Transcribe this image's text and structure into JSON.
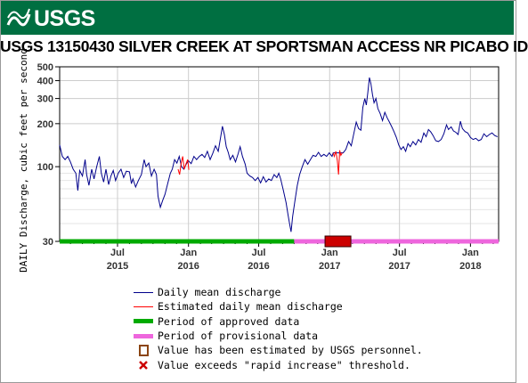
{
  "header": {
    "logo_text": "USGS"
  },
  "chart_data": {
    "type": "line",
    "title": "USGS 13150430 SILVER CREEK AT SPORTSMAN ACCESS NR PICABO ID",
    "ylabel": "DAILY Discharge, cubic feet per second",
    "xlabel": "",
    "y_scale": "log",
    "ylim": [
      30,
      500
    ],
    "y_ticks": [
      {
        "value": 30,
        "label": "30"
      },
      {
        "value": 100,
        "label": "100"
      },
      {
        "value": 200,
        "label": "200"
      },
      {
        "value": 300,
        "label": "300"
      },
      {
        "value": 400,
        "label": "400"
      },
      {
        "value": 500,
        "label": "500"
      }
    ],
    "xlim": [
      "2015-02-01",
      "2018-03-15"
    ],
    "x_ticks": [
      {
        "date": "2015-07-01",
        "line1": "Jul",
        "line2": "2015"
      },
      {
        "date": "2016-01-01",
        "line1": "Jan",
        "line2": "2016"
      },
      {
        "date": "2016-07-01",
        "line1": "Jul",
        "line2": "2016"
      },
      {
        "date": "2017-01-01",
        "line1": "Jan",
        "line2": "2017"
      },
      {
        "date": "2017-07-01",
        "line1": "Jul",
        "line2": "2017"
      },
      {
        "date": "2018-01-01",
        "line1": "Jan",
        "line2": "2018"
      }
    ],
    "grid": true,
    "legend_position": "bottom",
    "series": [
      {
        "name": "Daily mean discharge",
        "color": "#00008b",
        "points": [
          [
            "2015-02-01",
            142
          ],
          [
            "2015-02-08",
            118
          ],
          [
            "2015-02-15",
            112
          ],
          [
            "2015-02-22",
            118
          ],
          [
            "2015-03-01",
            108
          ],
          [
            "2015-03-08",
            96
          ],
          [
            "2015-03-15",
            90
          ],
          [
            "2015-03-20",
            68
          ],
          [
            "2015-03-25",
            94
          ],
          [
            "2015-04-01",
            86
          ],
          [
            "2015-04-08",
            112
          ],
          [
            "2015-04-12",
            88
          ],
          [
            "2015-04-18",
            74
          ],
          [
            "2015-04-25",
            96
          ],
          [
            "2015-05-01",
            82
          ],
          [
            "2015-05-08",
            100
          ],
          [
            "2015-05-15",
            118
          ],
          [
            "2015-05-20",
            90
          ],
          [
            "2015-05-26",
            78
          ],
          [
            "2015-06-01",
            96
          ],
          [
            "2015-06-08",
            75
          ],
          [
            "2015-06-14",
            86
          ],
          [
            "2015-06-20",
            94
          ],
          [
            "2015-06-26",
            80
          ],
          [
            "2015-07-03",
            90
          ],
          [
            "2015-07-10",
            96
          ],
          [
            "2015-07-17",
            84
          ],
          [
            "2015-07-24",
            93
          ],
          [
            "2015-08-01",
            92
          ],
          [
            "2015-08-06",
            76
          ],
          [
            "2015-08-10",
            82
          ],
          [
            "2015-08-17",
            72
          ],
          [
            "2015-08-24",
            80
          ],
          [
            "2015-09-01",
            88
          ],
          [
            "2015-09-08",
            112
          ],
          [
            "2015-09-13",
            100
          ],
          [
            "2015-09-20",
            106
          ],
          [
            "2015-09-27",
            86
          ],
          [
            "2015-10-04",
            96
          ],
          [
            "2015-10-10",
            88
          ],
          [
            "2015-10-14",
            62
          ],
          [
            "2015-10-20",
            52
          ],
          [
            "2015-10-26",
            58
          ],
          [
            "2015-11-01",
            64
          ],
          [
            "2015-11-08",
            76
          ],
          [
            "2015-11-15",
            90
          ],
          [
            "2015-11-20",
            96
          ],
          [
            "2015-11-26",
            112
          ],
          [
            "2015-12-02",
            106
          ],
          [
            "2015-12-08",
            118
          ],
          [
            "2015-12-14",
            100
          ],
          [
            "2015-12-20",
            96
          ],
          [
            "2015-12-26",
            104
          ],
          [
            "2016-01-01",
            110
          ],
          [
            "2016-01-08",
            105
          ],
          [
            "2016-01-15",
            118
          ],
          [
            "2016-01-22",
            112
          ],
          [
            "2016-01-29",
            118
          ],
          [
            "2016-02-05",
            122
          ],
          [
            "2016-02-12",
            116
          ],
          [
            "2016-02-19",
            128
          ],
          [
            "2016-02-26",
            112
          ],
          [
            "2016-03-04",
            124
          ],
          [
            "2016-03-11",
            140
          ],
          [
            "2016-03-18",
            128
          ],
          [
            "2016-03-25",
            165
          ],
          [
            "2016-03-29",
            192
          ],
          [
            "2016-04-03",
            168
          ],
          [
            "2016-04-08",
            138
          ],
          [
            "2016-04-13",
            126
          ],
          [
            "2016-04-18",
            112
          ],
          [
            "2016-04-25",
            120
          ],
          [
            "2016-05-02",
            108
          ],
          [
            "2016-05-09",
            124
          ],
          [
            "2016-05-14",
            138
          ],
          [
            "2016-05-20",
            118
          ],
          [
            "2016-05-27",
            104
          ],
          [
            "2016-06-01",
            90
          ],
          [
            "2016-06-08",
            86
          ],
          [
            "2016-06-15",
            84
          ],
          [
            "2016-06-22",
            80
          ],
          [
            "2016-06-29",
            84
          ],
          [
            "2016-07-06",
            77
          ],
          [
            "2016-07-13",
            85
          ],
          [
            "2016-07-20",
            78
          ],
          [
            "2016-07-27",
            82
          ],
          [
            "2016-08-03",
            80
          ],
          [
            "2016-08-10",
            88
          ],
          [
            "2016-08-17",
            84
          ],
          [
            "2016-08-22",
            90
          ],
          [
            "2016-08-27",
            82
          ],
          [
            "2016-09-03",
            68
          ],
          [
            "2016-09-10",
            56
          ],
          [
            "2016-09-15",
            46
          ],
          [
            "2016-09-19",
            40
          ],
          [
            "2016-09-23",
            35
          ],
          [
            "2016-09-27",
            45
          ],
          [
            "2016-10-03",
            58
          ],
          [
            "2016-10-09",
            74
          ],
          [
            "2016-10-15",
            88
          ],
          [
            "2016-10-22",
            100
          ],
          [
            "2016-10-29",
            112
          ],
          [
            "2016-11-05",
            104
          ],
          [
            "2016-11-12",
            112
          ],
          [
            "2016-11-19",
            120
          ],
          [
            "2016-11-26",
            118
          ],
          [
            "2016-12-03",
            126
          ],
          [
            "2016-12-10",
            118
          ],
          [
            "2016-12-17",
            122
          ],
          [
            "2016-12-24",
            118
          ],
          [
            "2016-12-31",
            125
          ],
          [
            "2017-01-07",
            118
          ],
          [
            "2017-01-10",
            125
          ],
          [
            "2017-02-05",
            125
          ],
          [
            "2017-02-12",
            132
          ],
          [
            "2017-02-19",
            150
          ],
          [
            "2017-02-26",
            140
          ],
          [
            "2017-03-05",
            172
          ],
          [
            "2017-03-11",
            205
          ],
          [
            "2017-03-17",
            185
          ],
          [
            "2017-03-23",
            180
          ],
          [
            "2017-03-28",
            260
          ],
          [
            "2017-04-02",
            300
          ],
          [
            "2017-04-06",
            270
          ],
          [
            "2017-04-10",
            330
          ],
          [
            "2017-04-14",
            420
          ],
          [
            "2017-04-18",
            380
          ],
          [
            "2017-04-22",
            320
          ],
          [
            "2017-04-26",
            280
          ],
          [
            "2017-05-01",
            300
          ],
          [
            "2017-05-06",
            255
          ],
          [
            "2017-05-12",
            235
          ],
          [
            "2017-05-18",
            210
          ],
          [
            "2017-05-24",
            240
          ],
          [
            "2017-05-30",
            220
          ],
          [
            "2017-06-05",
            205
          ],
          [
            "2017-06-11",
            190
          ],
          [
            "2017-06-17",
            175
          ],
          [
            "2017-06-23",
            160
          ],
          [
            "2017-06-29",
            142
          ],
          [
            "2017-07-05",
            132
          ],
          [
            "2017-07-11",
            138
          ],
          [
            "2017-07-17",
            128
          ],
          [
            "2017-07-23",
            145
          ],
          [
            "2017-07-29",
            138
          ],
          [
            "2017-08-05",
            150
          ],
          [
            "2017-08-12",
            142
          ],
          [
            "2017-08-19",
            155
          ],
          [
            "2017-08-26",
            148
          ],
          [
            "2017-09-02",
            172
          ],
          [
            "2017-09-08",
            162
          ],
          [
            "2017-09-14",
            182
          ],
          [
            "2017-09-20",
            175
          ],
          [
            "2017-09-26",
            165
          ],
          [
            "2017-10-03",
            152
          ],
          [
            "2017-10-10",
            150
          ],
          [
            "2017-10-17",
            155
          ],
          [
            "2017-10-24",
            170
          ],
          [
            "2017-10-31",
            196
          ],
          [
            "2017-11-05",
            182
          ],
          [
            "2017-11-12",
            190
          ],
          [
            "2017-11-18",
            178
          ],
          [
            "2017-11-24",
            174
          ],
          [
            "2017-11-30",
            168
          ],
          [
            "2017-12-06",
            208
          ],
          [
            "2017-12-11",
            185
          ],
          [
            "2017-12-18",
            176
          ],
          [
            "2017-12-25",
            172
          ],
          [
            "2018-01-01",
            160
          ],
          [
            "2018-01-08",
            155
          ],
          [
            "2018-01-15",
            158
          ],
          [
            "2018-01-22",
            152
          ],
          [
            "2018-01-29",
            155
          ],
          [
            "2018-02-05",
            170
          ],
          [
            "2018-02-12",
            162
          ],
          [
            "2018-02-19",
            168
          ],
          [
            "2018-02-26",
            172
          ],
          [
            "2018-03-05",
            165
          ],
          [
            "2018-03-12",
            162
          ]
        ]
      },
      {
        "name": "Estimated daily mean discharge",
        "color": "#ff0000",
        "segments": [
          [
            [
              "2015-12-05",
              96
            ],
            [
              "2015-12-09",
              88
            ],
            [
              "2015-12-13",
              106
            ],
            [
              "2015-12-17",
              118
            ],
            [
              "2015-12-21",
              96
            ],
            [
              "2015-12-25",
              104
            ],
            [
              "2015-12-30",
              112
            ],
            [
              "2016-01-02",
              95
            ]
          ],
          [
            [
              "2017-01-10",
              125
            ],
            [
              "2017-01-13",
              118
            ],
            [
              "2017-01-17",
              128
            ],
            [
              "2017-01-21",
              110
            ],
            [
              "2017-01-24",
              88
            ],
            [
              "2017-01-27",
              130
            ],
            [
              "2017-01-30",
              120
            ],
            [
              "2017-02-03",
              125
            ]
          ]
        ]
      }
    ],
    "periods": [
      {
        "name": "Period of approved data",
        "color": "#00aa00",
        "start": "2015-02-01",
        "end": "2016-10-01"
      },
      {
        "name": "Period of provisional data",
        "color": "#ee66dd",
        "start": "2016-10-01",
        "end": "2018-03-15"
      }
    ],
    "estimated_marker": {
      "name": "Value has been estimated by USGS personnel.",
      "start": "2016-12-20",
      "end": "2017-02-25",
      "color": "#cc0000"
    },
    "legend": [
      {
        "label": "Daily mean discharge",
        "symbol": "line",
        "color": "#00008b"
      },
      {
        "label": "Estimated daily mean discharge",
        "symbol": "line",
        "color": "#ff0000"
      },
      {
        "label": "Period of approved data",
        "symbol": "thick-line",
        "color": "#00aa00"
      },
      {
        "label": "Period of provisional data",
        "symbol": "thick-line",
        "color": "#ee66dd"
      },
      {
        "label": "Value has been estimated by USGS personnel.",
        "symbol": "box",
        "color": "#8b4513"
      },
      {
        "label": "Value exceeds \"rapid increase\" threshold.",
        "symbol": "x",
        "color": "#cc0000"
      }
    ]
  }
}
